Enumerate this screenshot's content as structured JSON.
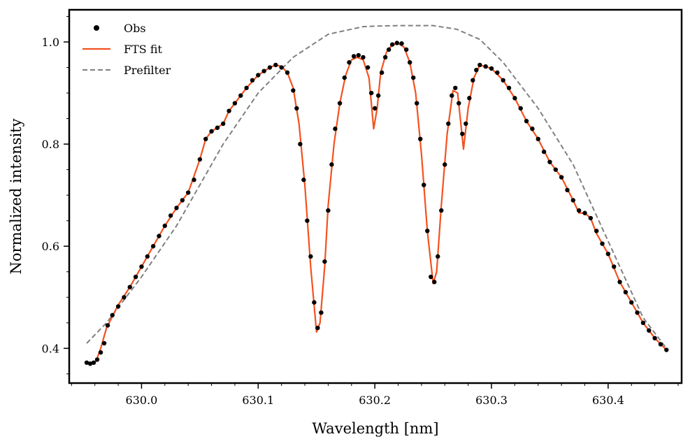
{
  "chart_data": {
    "type": "line",
    "title": "",
    "xlabel": "Wavelength [nm]",
    "ylabel": "Normalized intensity",
    "xlim": [
      629.938,
      630.463
    ],
    "ylim": [
      0.332,
      1.063
    ],
    "xticks": [
      630.0,
      630.1,
      630.2,
      630.3,
      630.4
    ],
    "xtick_labels": [
      "630.0",
      "630.1",
      "630.2",
      "630.3",
      "630.4"
    ],
    "yticks": [
      0.4,
      0.6,
      0.8,
      1.0
    ],
    "ytick_labels": [
      "0.4",
      "0.6",
      "0.8",
      "1.0"
    ],
    "x_minor_step": 0.02,
    "y_minor_step": 0.05,
    "grid": false,
    "legend_position": "top-left",
    "legend": [
      "Obs",
      "FTS fit",
      "Prefilter"
    ],
    "series": [
      {
        "name": "Prefilter",
        "style": "dashed",
        "color": "#808080",
        "points": [
          [
            629.953,
            0.41
          ],
          [
            629.97,
            0.45
          ],
          [
            630.0,
            0.54
          ],
          [
            630.03,
            0.64
          ],
          [
            630.05,
            0.72
          ],
          [
            630.07,
            0.8
          ],
          [
            630.1,
            0.9
          ],
          [
            630.13,
            0.97
          ],
          [
            630.16,
            1.015
          ],
          [
            630.19,
            1.03
          ],
          [
            630.2,
            1.031
          ],
          [
            630.22,
            1.032
          ],
          [
            630.25,
            1.032
          ],
          [
            630.27,
            1.025
          ],
          [
            630.29,
            1.005
          ],
          [
            630.31,
            0.96
          ],
          [
            630.34,
            0.87
          ],
          [
            630.37,
            0.76
          ],
          [
            630.39,
            0.66
          ],
          [
            630.41,
            0.56
          ],
          [
            630.43,
            0.46
          ],
          [
            630.45,
            0.4
          ]
        ]
      },
      {
        "name": "FTS fit",
        "style": "solid",
        "color": "#f4511e",
        "points": [
          [
            629.953,
            0.372
          ],
          [
            629.957,
            0.369
          ],
          [
            629.961,
            0.375
          ],
          [
            629.965,
            0.4
          ],
          [
            629.97,
            0.44
          ],
          [
            629.98,
            0.485
          ],
          [
            629.99,
            0.52
          ],
          [
            630.0,
            0.56
          ],
          [
            630.01,
            0.6
          ],
          [
            630.02,
            0.64
          ],
          [
            630.03,
            0.675
          ],
          [
            630.04,
            0.705
          ],
          [
            630.05,
            0.77
          ],
          [
            630.055,
            0.81
          ],
          [
            630.06,
            0.825
          ],
          [
            630.065,
            0.832
          ],
          [
            630.07,
            0.84
          ],
          [
            630.075,
            0.865
          ],
          [
            630.08,
            0.88
          ],
          [
            630.09,
            0.91
          ],
          [
            630.1,
            0.935
          ],
          [
            630.11,
            0.95
          ],
          [
            630.115,
            0.955
          ],
          [
            630.12,
            0.952
          ],
          [
            630.125,
            0.94
          ],
          [
            630.13,
            0.91
          ],
          [
            630.135,
            0.84
          ],
          [
            630.14,
            0.72
          ],
          [
            630.145,
            0.56
          ],
          [
            630.15,
            0.432
          ],
          [
            630.153,
            0.45
          ],
          [
            630.157,
            0.56
          ],
          [
            630.16,
            0.68
          ],
          [
            630.165,
            0.8
          ],
          [
            630.17,
            0.88
          ],
          [
            630.175,
            0.935
          ],
          [
            630.18,
            0.965
          ],
          [
            630.185,
            0.97
          ],
          [
            630.19,
            0.965
          ],
          [
            630.195,
            0.93
          ],
          [
            630.199,
            0.83
          ],
          [
            630.202,
            0.87
          ],
          [
            630.205,
            0.94
          ],
          [
            630.21,
            0.98
          ],
          [
            630.215,
            0.995
          ],
          [
            630.22,
            0.997
          ],
          [
            630.225,
            0.99
          ],
          [
            630.23,
            0.96
          ],
          [
            630.235,
            0.9
          ],
          [
            630.24,
            0.78
          ],
          [
            630.245,
            0.63
          ],
          [
            630.25,
            0.527
          ],
          [
            630.253,
            0.55
          ],
          [
            630.257,
            0.68
          ],
          [
            630.262,
            0.82
          ],
          [
            630.267,
            0.905
          ],
          [
            630.271,
            0.9
          ],
          [
            630.276,
            0.79
          ],
          [
            630.28,
            0.87
          ],
          [
            630.285,
            0.93
          ],
          [
            630.29,
            0.955
          ],
          [
            630.3,
            0.948
          ],
          [
            630.31,
            0.925
          ],
          [
            630.32,
            0.89
          ],
          [
            630.33,
            0.845
          ],
          [
            630.34,
            0.81
          ],
          [
            630.35,
            0.765
          ],
          [
            630.36,
            0.735
          ],
          [
            630.37,
            0.69
          ],
          [
            630.375,
            0.665
          ],
          [
            630.38,
            0.665
          ],
          [
            630.385,
            0.655
          ],
          [
            630.39,
            0.625
          ],
          [
            630.4,
            0.585
          ],
          [
            630.41,
            0.53
          ],
          [
            630.42,
            0.49
          ],
          [
            630.43,
            0.45
          ],
          [
            630.44,
            0.42
          ],
          [
            630.45,
            0.397
          ]
        ]
      },
      {
        "name": "Obs",
        "style": "markers",
        "color": "#000000",
        "points": [
          [
            629.953,
            0.372
          ],
          [
            629.956,
            0.37
          ],
          [
            629.959,
            0.372
          ],
          [
            629.962,
            0.378
          ],
          [
            629.965,
            0.392
          ],
          [
            629.968,
            0.41
          ],
          [
            629.971,
            0.445
          ],
          [
            629.975,
            0.465
          ],
          [
            629.98,
            0.482
          ],
          [
            629.985,
            0.5
          ],
          [
            629.99,
            0.52
          ],
          [
            629.995,
            0.54
          ],
          [
            630.0,
            0.56
          ],
          [
            630.005,
            0.58
          ],
          [
            630.01,
            0.6
          ],
          [
            630.015,
            0.62
          ],
          [
            630.02,
            0.64
          ],
          [
            630.025,
            0.66
          ],
          [
            630.03,
            0.675
          ],
          [
            630.035,
            0.69
          ],
          [
            630.04,
            0.705
          ],
          [
            630.045,
            0.73
          ],
          [
            630.05,
            0.77
          ],
          [
            630.055,
            0.81
          ],
          [
            630.06,
            0.825
          ],
          [
            630.065,
            0.832
          ],
          [
            630.07,
            0.84
          ],
          [
            630.075,
            0.865
          ],
          [
            630.08,
            0.88
          ],
          [
            630.085,
            0.895
          ],
          [
            630.09,
            0.91
          ],
          [
            630.095,
            0.925
          ],
          [
            630.1,
            0.935
          ],
          [
            630.105,
            0.943
          ],
          [
            630.11,
            0.95
          ],
          [
            630.115,
            0.955
          ],
          [
            630.12,
            0.95
          ],
          [
            630.125,
            0.94
          ],
          [
            630.13,
            0.905
          ],
          [
            630.133,
            0.87
          ],
          [
            630.136,
            0.8
          ],
          [
            630.139,
            0.73
          ],
          [
            630.142,
            0.65
          ],
          [
            630.145,
            0.58
          ],
          [
            630.148,
            0.49
          ],
          [
            630.151,
            0.44
          ],
          [
            630.154,
            0.47
          ],
          [
            630.157,
            0.57
          ],
          [
            630.16,
            0.67
          ],
          [
            630.163,
            0.76
          ],
          [
            630.166,
            0.83
          ],
          [
            630.17,
            0.88
          ],
          [
            630.174,
            0.93
          ],
          [
            630.178,
            0.96
          ],
          [
            630.182,
            0.972
          ],
          [
            630.186,
            0.974
          ],
          [
            630.19,
            0.97
          ],
          [
            630.194,
            0.95
          ],
          [
            630.197,
            0.9
          ],
          [
            630.2,
            0.87
          ],
          [
            630.203,
            0.895
          ],
          [
            630.206,
            0.94
          ],
          [
            630.209,
            0.97
          ],
          [
            630.212,
            0.985
          ],
          [
            630.215,
            0.995
          ],
          [
            630.219,
            0.998
          ],
          [
            630.223,
            0.997
          ],
          [
            630.227,
            0.985
          ],
          [
            630.23,
            0.96
          ],
          [
            630.233,
            0.93
          ],
          [
            630.236,
            0.88
          ],
          [
            630.239,
            0.81
          ],
          [
            630.242,
            0.72
          ],
          [
            630.245,
            0.63
          ],
          [
            630.248,
            0.54
          ],
          [
            630.251,
            0.53
          ],
          [
            630.254,
            0.58
          ],
          [
            630.257,
            0.67
          ],
          [
            630.26,
            0.76
          ],
          [
            630.263,
            0.84
          ],
          [
            630.266,
            0.895
          ],
          [
            630.269,
            0.91
          ],
          [
            630.272,
            0.88
          ],
          [
            630.275,
            0.82
          ],
          [
            630.278,
            0.84
          ],
          [
            630.281,
            0.89
          ],
          [
            630.284,
            0.925
          ],
          [
            630.287,
            0.945
          ],
          [
            630.29,
            0.955
          ],
          [
            630.295,
            0.952
          ],
          [
            630.3,
            0.948
          ],
          [
            630.305,
            0.94
          ],
          [
            630.31,
            0.925
          ],
          [
            630.315,
            0.91
          ],
          [
            630.32,
            0.89
          ],
          [
            630.325,
            0.87
          ],
          [
            630.33,
            0.845
          ],
          [
            630.335,
            0.83
          ],
          [
            630.34,
            0.81
          ],
          [
            630.345,
            0.785
          ],
          [
            630.35,
            0.765
          ],
          [
            630.355,
            0.75
          ],
          [
            630.36,
            0.735
          ],
          [
            630.365,
            0.71
          ],
          [
            630.37,
            0.69
          ],
          [
            630.375,
            0.67
          ],
          [
            630.38,
            0.665
          ],
          [
            630.385,
            0.655
          ],
          [
            630.39,
            0.63
          ],
          [
            630.395,
            0.605
          ],
          [
            630.4,
            0.585
          ],
          [
            630.405,
            0.56
          ],
          [
            630.41,
            0.53
          ],
          [
            630.415,
            0.51
          ],
          [
            630.42,
            0.49
          ],
          [
            630.425,
            0.47
          ],
          [
            630.43,
            0.45
          ],
          [
            630.435,
            0.435
          ],
          [
            630.44,
            0.42
          ],
          [
            630.445,
            0.408
          ],
          [
            630.45,
            0.397
          ]
        ]
      }
    ]
  }
}
